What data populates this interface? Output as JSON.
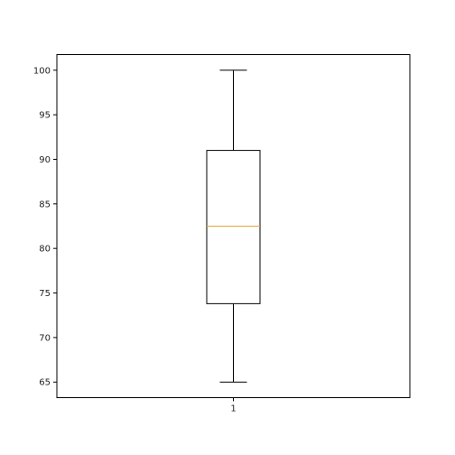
{
  "chart_data": {
    "type": "box",
    "categories": [
      "1"
    ],
    "series": [
      {
        "whisker_low": 65,
        "q1": 73.8,
        "median": 82.5,
        "q3": 91,
        "whisker_high": 100
      }
    ],
    "ylim": [
      63.25,
      101.75
    ],
    "yticks": [
      65,
      70,
      75,
      80,
      85,
      90,
      95,
      100
    ],
    "title": "",
    "xlabel": "",
    "ylabel": "",
    "grid": false,
    "colors": {
      "box": "#000000",
      "median": "#e8a33d"
    }
  }
}
